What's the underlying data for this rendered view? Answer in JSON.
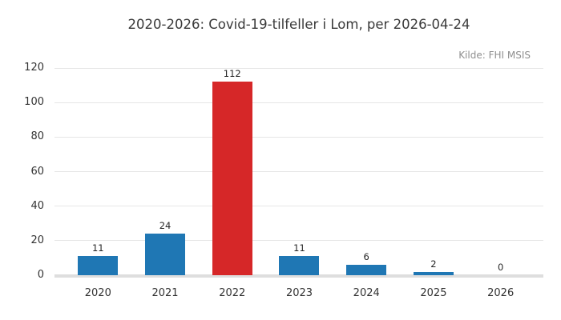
{
  "chart_data": {
    "type": "bar",
    "title": "2020-2026: Covid-19-tilfeller i Lom, per 2026-04-24",
    "annotation": "Kilde: FHI MSIS",
    "categories": [
      "2020",
      "2021",
      "2022",
      "2023",
      "2024",
      "2025",
      "2026"
    ],
    "values": [
      11,
      24,
      112,
      11,
      6,
      2,
      0
    ],
    "bar_colors": [
      "#1f77b4",
      "#1f77b4",
      "#d62728",
      "#1f77b4",
      "#1f77b4",
      "#1f77b4",
      "#1f77b4"
    ],
    "highlight_index": 2,
    "value_labels": true,
    "xlabel": "",
    "ylabel": "",
    "ylim": [
      0,
      120
    ],
    "yticks": [
      0,
      20,
      40,
      60,
      80,
      100,
      120
    ],
    "grid": "horizontal",
    "legend": "none"
  },
  "colors": {
    "bar_default": "#1f77b4",
    "bar_highlight": "#d62728",
    "gridline": "#e6e6e6",
    "baseline": "#dedede",
    "title_text": "#3a3a3a",
    "tick_text": "#333333",
    "value_text": "#262626",
    "source_text": "#8f8f8f",
    "background": "#ffffff"
  }
}
